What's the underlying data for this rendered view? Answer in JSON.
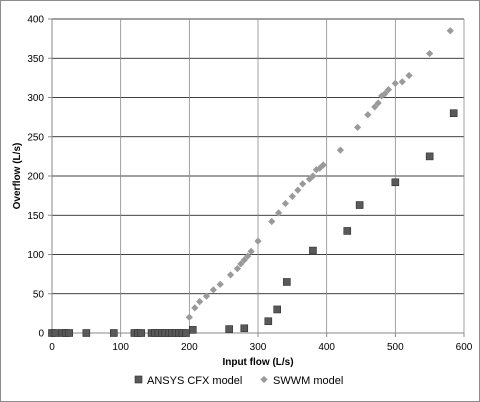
{
  "chart_data": {
    "type": "scatter",
    "title": "",
    "xlabel": "Input flow (L/s)",
    "ylabel": "Overflow (L/s)",
    "xlim": [
      0,
      600
    ],
    "ylim": [
      0,
      400
    ],
    "xticks": [
      0,
      100,
      200,
      300,
      400,
      500,
      600
    ],
    "yticks": [
      0,
      50,
      100,
      150,
      200,
      250,
      300,
      350,
      400
    ],
    "grid": true,
    "legend_position": "bottom",
    "series": [
      {
        "name": "ANSYS CFX model",
        "marker": "square",
        "color": "#595959",
        "points": [
          [
            0,
            0
          ],
          [
            5,
            0
          ],
          [
            15,
            0
          ],
          [
            20,
            0
          ],
          [
            25,
            0
          ],
          [
            50,
            0
          ],
          [
            90,
            0
          ],
          [
            120,
            0
          ],
          [
            125,
            0
          ],
          [
            130,
            0
          ],
          [
            145,
            0
          ],
          [
            150,
            0
          ],
          [
            155,
            0
          ],
          [
            160,
            0
          ],
          [
            165,
            0
          ],
          [
            170,
            0
          ],
          [
            175,
            0
          ],
          [
            180,
            0
          ],
          [
            185,
            0
          ],
          [
            190,
            0
          ],
          [
            195,
            0
          ],
          [
            205,
            4
          ],
          [
            258,
            5
          ],
          [
            280,
            6
          ],
          [
            315,
            15
          ],
          [
            328,
            30
          ],
          [
            342,
            65
          ],
          [
            380,
            105
          ],
          [
            430,
            130
          ],
          [
            448,
            163
          ],
          [
            500,
            192
          ],
          [
            550,
            225
          ],
          [
            585,
            280
          ]
        ]
      },
      {
        "name": "SWWM model",
        "marker": "diamond",
        "color": "#9a9a9a",
        "points": [
          [
            0,
            0
          ],
          [
            10,
            0
          ],
          [
            15,
            0
          ],
          [
            20,
            0
          ],
          [
            25,
            0
          ],
          [
            200,
            20
          ],
          [
            208,
            32
          ],
          [
            215,
            40
          ],
          [
            225,
            47
          ],
          [
            235,
            55
          ],
          [
            245,
            62
          ],
          [
            260,
            74
          ],
          [
            270,
            82
          ],
          [
            275,
            88
          ],
          [
            280,
            93
          ],
          [
            285,
            98
          ],
          [
            290,
            104
          ],
          [
            300,
            117
          ],
          [
            320,
            142
          ],
          [
            330,
            153
          ],
          [
            340,
            165
          ],
          [
            350,
            174
          ],
          [
            358,
            182
          ],
          [
            365,
            190
          ],
          [
            375,
            196
          ],
          [
            380,
            200
          ],
          [
            385,
            208
          ],
          [
            390,
            210
          ],
          [
            395,
            214
          ],
          [
            420,
            233
          ],
          [
            445,
            262
          ],
          [
            460,
            278
          ],
          [
            470,
            288
          ],
          [
            475,
            293
          ],
          [
            480,
            302
          ],
          [
            485,
            305
          ],
          [
            490,
            310
          ],
          [
            500,
            318
          ],
          [
            510,
            320
          ],
          [
            520,
            328
          ],
          [
            550,
            356
          ],
          [
            580,
            385
          ]
        ]
      }
    ]
  }
}
